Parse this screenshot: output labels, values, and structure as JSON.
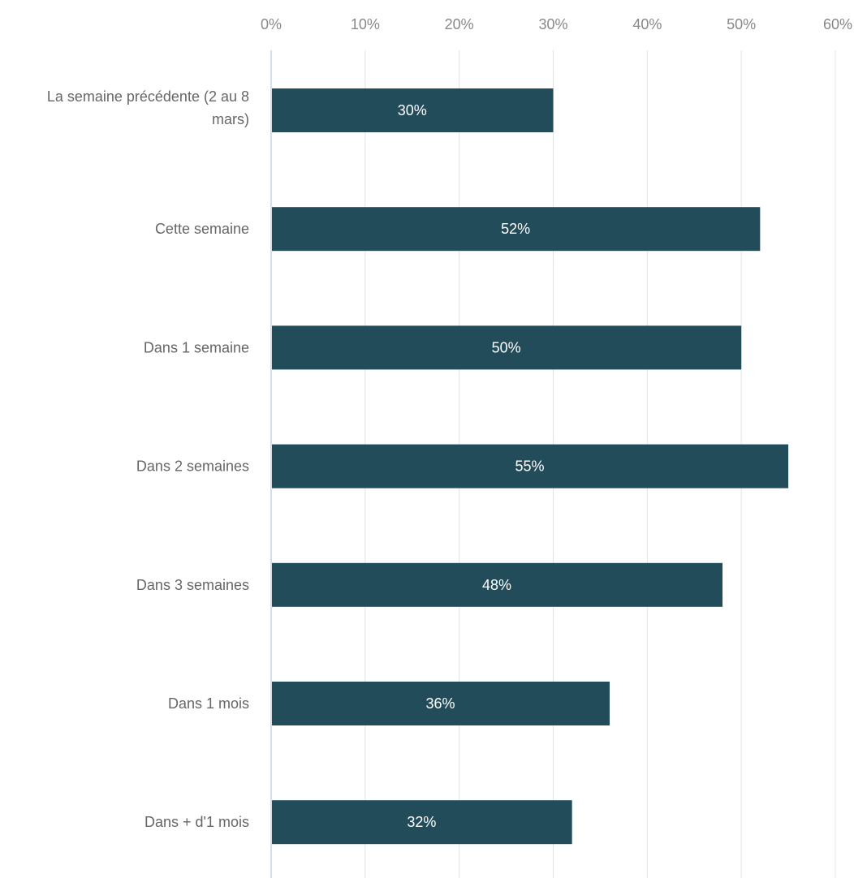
{
  "chart_data": {
    "type": "bar",
    "orientation": "horizontal",
    "categories": [
      "La semaine précédente (2 au 8 mars)",
      "Cette semaine",
      "Dans 1 semaine",
      "Dans 2 semaines",
      "Dans 3 semaines",
      "Dans 1 mois",
      "Dans + d'1 mois"
    ],
    "values": [
      30,
      52,
      50,
      55,
      48,
      36,
      32
    ],
    "data_labels": [
      "30%",
      "52%",
      "50%",
      "55%",
      "48%",
      "36%",
      "32%"
    ],
    "x_ticks": [
      "0%",
      "10%",
      "20%",
      "30%",
      "40%",
      "50%",
      "60%"
    ],
    "xlim": [
      0,
      60
    ],
    "x_axis_position": "top",
    "grid": true,
    "legend": "none",
    "title": "",
    "xlabel": "",
    "ylabel": "",
    "colors": {
      "bar": "#234c5b",
      "grid": "#e3e3e3",
      "axis": "#c8d3e6",
      "tick_text": "#888888",
      "category_text": "#666666",
      "data_label_text": "#ffffff"
    }
  }
}
